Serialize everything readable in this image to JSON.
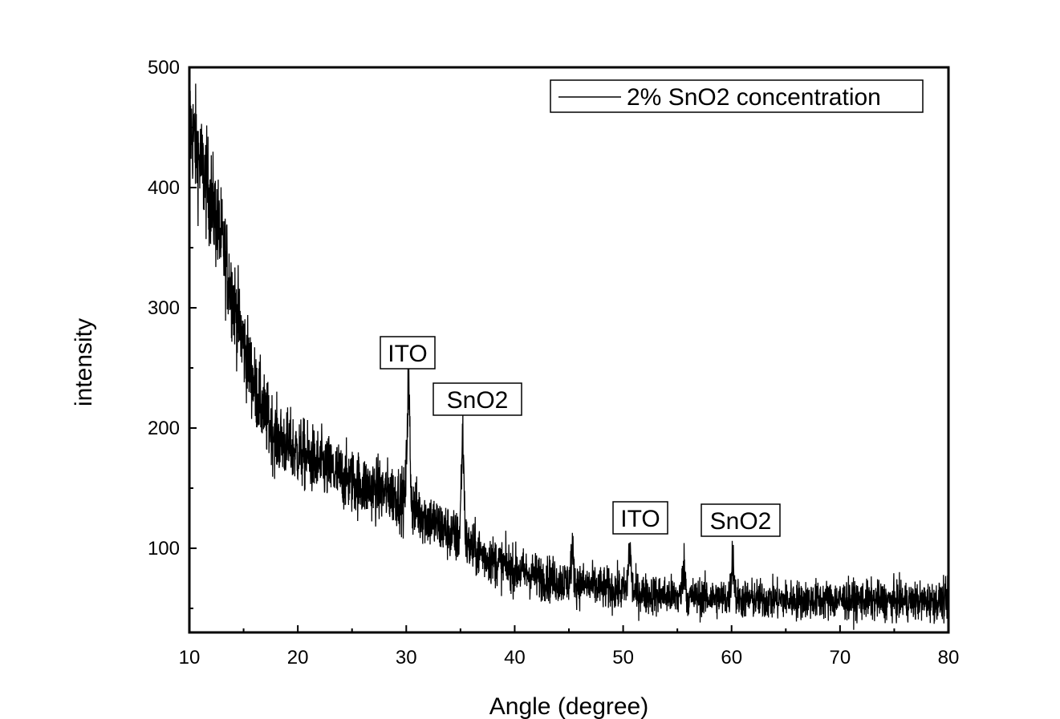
{
  "chart_data": {
    "type": "line",
    "title": "",
    "xlabel": "Angle (degree)",
    "ylabel": "intensity",
    "xlim": [
      10,
      80
    ],
    "ylim": [
      30,
      500
    ],
    "xticks": [
      10,
      20,
      30,
      40,
      50,
      60,
      70,
      80
    ],
    "yticks": [
      100,
      200,
      300,
      400,
      500
    ],
    "xtick_labels": [
      "10",
      "20",
      "30",
      "40",
      "50",
      "60",
      "70",
      "80"
    ],
    "ytick_labels": [
      "100",
      "200",
      "300",
      "400",
      "500"
    ],
    "grid": false,
    "legend": {
      "position": "top-right",
      "entries": [
        "2% SnO2 concentration"
      ]
    },
    "series": [
      {
        "name": "2% SnO2 concentration",
        "color": "#000000",
        "baseline_x": [
          10,
          11,
          12,
          13,
          14,
          15,
          16,
          17,
          18,
          20,
          22,
          24,
          26,
          28,
          29,
          32,
          34,
          36,
          38,
          40,
          42,
          44,
          46,
          48,
          50,
          52,
          55,
          60,
          65,
          70,
          75,
          80
        ],
        "baseline_y": [
          455,
          420,
          390,
          355,
          310,
          270,
          235,
          210,
          192,
          180,
          170,
          160,
          152,
          147,
          145,
          125,
          112,
          100,
          90,
          82,
          77,
          73,
          70,
          67,
          65,
          62,
          60,
          58,
          57,
          57,
          56,
          56
        ],
        "peaks": [
          {
            "x": 30.2,
            "y": 235
          },
          {
            "x": 35.2,
            "y": 192
          },
          {
            "x": 45.3,
            "y": 95
          },
          {
            "x": 50.6,
            "y": 100
          },
          {
            "x": 55.6,
            "y": 85
          },
          {
            "x": 60.1,
            "y": 93
          }
        ]
      }
    ],
    "annotations": [
      {
        "text": "ITO",
        "x": 30.2,
        "y": 262
      },
      {
        "text": "SnO2",
        "x": 35.2,
        "y": 225
      },
      {
        "text": "ITO",
        "x": 50.7,
        "y": 126
      },
      {
        "text": "SnO2",
        "x": 60.8,
        "y": 124
      }
    ]
  }
}
